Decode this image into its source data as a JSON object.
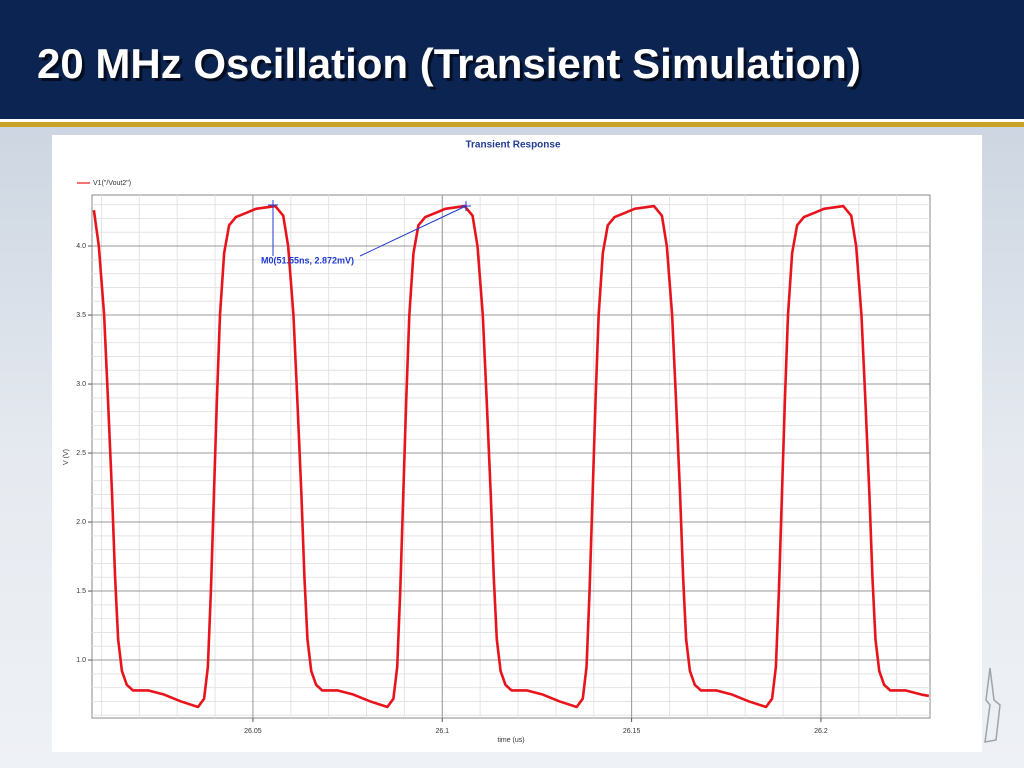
{
  "header": {
    "title": "20 MHz Oscillation (Transient Simulation)"
  },
  "chart_data": {
    "type": "line",
    "title": "Transient Response",
    "x_label": "time (us)",
    "y_label": "V (V)",
    "legend": "top-left",
    "grid": true,
    "annotations": [
      "M0(51.55ns, 2.872mV)"
    ],
    "xlim": [
      26.0075,
      26.2288
    ],
    "ylim": [
      0.58,
      4.37
    ],
    "xticks": [
      26.05,
      26.1,
      26.15,
      26.2
    ],
    "yticks": [
      {
        "value": 1,
        "label": "1.0"
      },
      1.5,
      {
        "value": 2,
        "label": "2.0"
      },
      2.5,
      {
        "value": 3,
        "label": "3.0"
      },
      3.5,
      {
        "value": 4,
        "label": "4.0"
      }
    ],
    "x": [
      26.008,
      26.0093,
      26.0107,
      26.0117,
      26.0128,
      26.0136,
      26.0144,
      26.0154,
      26.0167,
      26.0183,
      26.0223,
      26.0265,
      26.031,
      26.0355,
      26.0371,
      26.0381,
      26.0389,
      26.0397,
      26.0405,
      26.0413,
      26.0424,
      26.0437,
      26.0455,
      26.0482,
      26.0508,
      26.0534,
      26.0559,
      26.058,
      26.0593,
      26.0607,
      26.0617,
      26.0628,
      26.0636,
      26.0644,
      26.0654,
      26.0667,
      26.0683,
      26.0723,
      26.0765,
      26.081,
      26.0855,
      26.0871,
      26.0881,
      26.0889,
      26.0897,
      26.0905,
      26.0913,
      26.0924,
      26.0937,
      26.0955,
      26.0982,
      26.1008,
      26.1034,
      26.1059,
      26.108,
      26.1093,
      26.1107,
      26.1117,
      26.1128,
      26.1136,
      26.1144,
      26.1154,
      26.1167,
      26.1183,
      26.1223,
      26.1265,
      26.131,
      26.1355,
      26.1371,
      26.1381,
      26.1389,
      26.1397,
      26.1405,
      26.1413,
      26.1424,
      26.1437,
      26.1455,
      26.1482,
      26.1508,
      26.1534,
      26.1559,
      26.158,
      26.1593,
      26.1607,
      26.1617,
      26.1628,
      26.1636,
      26.1644,
      26.1654,
      26.1667,
      26.1683,
      26.1723,
      26.1765,
      26.181,
      26.1855,
      26.1871,
      26.1881,
      26.1889,
      26.1897,
      26.1905,
      26.1913,
      26.1924,
      26.1937,
      26.1955,
      26.1982,
      26.2008,
      26.2034,
      26.2059,
      26.208,
      26.2093,
      26.2107,
      26.2117,
      26.2128,
      26.2136,
      26.2144,
      26.2154,
      26.2167,
      26.2183,
      26.2223,
      26.2265,
      26.2285
    ],
    "series": [
      {
        "name": "V1(\"/Vout2\")",
        "color": "#e8141c",
        "values": [
          4.26,
          4.0,
          3.5,
          2.9,
          2.2,
          1.6,
          1.15,
          0.92,
          0.82,
          0.78,
          0.78,
          0.75,
          0.7,
          0.66,
          0.72,
          0.95,
          1.5,
          2.2,
          2.9,
          3.5,
          3.95,
          4.15,
          4.21,
          4.24,
          4.27,
          4.28,
          4.29,
          4.22,
          4.0,
          3.5,
          2.9,
          2.2,
          1.6,
          1.15,
          0.92,
          0.82,
          0.78,
          0.78,
          0.75,
          0.7,
          0.66,
          0.72,
          0.95,
          1.5,
          2.2,
          2.9,
          3.5,
          3.95,
          4.15,
          4.21,
          4.24,
          4.27,
          4.28,
          4.29,
          4.22,
          4.0,
          3.5,
          2.9,
          2.2,
          1.6,
          1.15,
          0.92,
          0.82,
          0.78,
          0.78,
          0.75,
          0.7,
          0.66,
          0.72,
          0.95,
          1.5,
          2.2,
          2.9,
          3.5,
          3.95,
          4.15,
          4.21,
          4.24,
          4.27,
          4.28,
          4.29,
          4.22,
          4.0,
          3.5,
          2.9,
          2.2,
          1.6,
          1.15,
          0.92,
          0.82,
          0.78,
          0.78,
          0.75,
          0.7,
          0.66,
          0.72,
          0.95,
          1.5,
          2.2,
          2.9,
          3.5,
          3.95,
          4.15,
          4.21,
          4.24,
          4.27,
          4.28,
          4.29,
          4.22,
          4.0,
          3.5,
          2.9,
          2.2,
          1.6,
          1.15,
          0.92,
          0.82,
          0.78,
          0.78,
          0.75,
          0.74
        ]
      }
    ]
  }
}
